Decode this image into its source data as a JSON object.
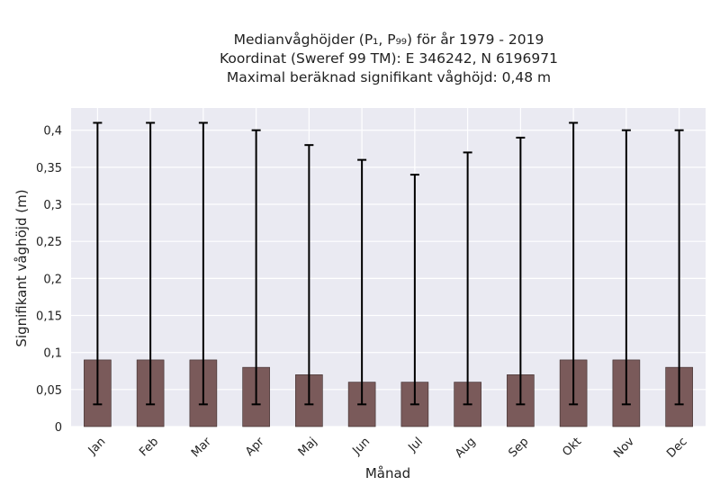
{
  "chart_data": {
    "type": "bar",
    "title_lines": [
      "Medianvåghöjder (P₁, P₉₉) för år 1979 - 2019",
      "Koordinat (Sweref 99 TM): E 346242, N 6196971",
      "Maximal beräknad signifikant våghöjd: 0,48 m"
    ],
    "xlabel": "Månad",
    "ylabel": "Signifikant våghöjd (m)",
    "categories": [
      "Jan",
      "Feb",
      "Mar",
      "Apr",
      "Maj",
      "Jun",
      "Jul",
      "Aug",
      "Sep",
      "Okt",
      "Nov",
      "Dec"
    ],
    "values": [
      0.09,
      0.09,
      0.09,
      0.08,
      0.07,
      0.06,
      0.06,
      0.06,
      0.07,
      0.09,
      0.09,
      0.08
    ],
    "error_low": [
      0.03,
      0.03,
      0.03,
      0.03,
      0.03,
      0.03,
      0.03,
      0.03,
      0.03,
      0.03,
      0.03,
      0.03
    ],
    "error_high": [
      0.41,
      0.41,
      0.41,
      0.4,
      0.38,
      0.36,
      0.34,
      0.37,
      0.39,
      0.41,
      0.4,
      0.4
    ],
    "ylim": [
      0,
      0.43
    ],
    "yticks": [
      0,
      0.05,
      0.1,
      0.15,
      0.2,
      0.25,
      0.3,
      0.35,
      0.4
    ],
    "ytick_labels": [
      "0",
      "0,05",
      "0,1",
      "0,15",
      "0,2",
      "0,25",
      "0,3",
      "0,35",
      "0,4"
    ],
    "grid": true,
    "colors": {
      "bar": "#7a5a5a",
      "bar_edge": "#3a2a2a",
      "error": "#000000",
      "plot_bg": "#eaeaf2",
      "grid": "#ffffff"
    }
  }
}
